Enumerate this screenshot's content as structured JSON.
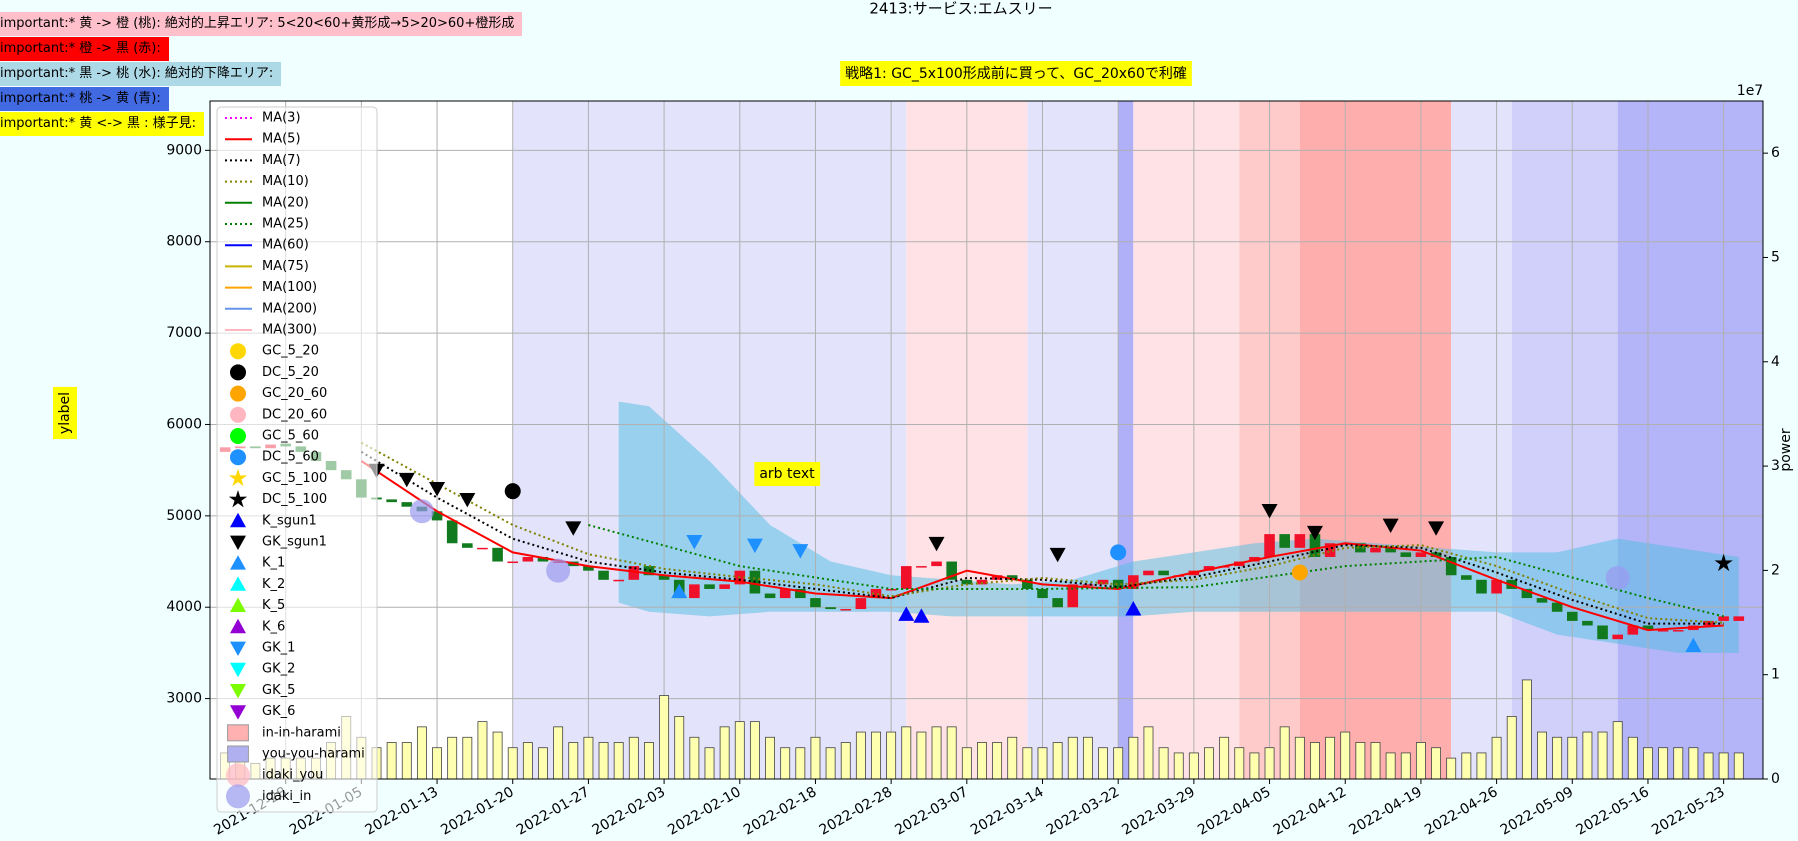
{
  "header": {
    "notes": [
      {
        "text": "important:* 黄 -> 橙 (桃): 絶対的上昇エリア: 5<20<60+黄形成→5>20>60+橙形成",
        "color": "#ffc0cb"
      },
      {
        "text": "important:* 橙 -> 黒 (赤):",
        "color": "#ff0000"
      },
      {
        "text": "important:* 黒 -> 桃 (水): 絶対的下降エリア:",
        "color": "#add8e6"
      },
      {
        "text": "important:* 桃 -> 黄 (青):",
        "color": "#4169e1"
      },
      {
        "text": "important:* 黄 <-> 黒 : 様子見:",
        "color": "#ffff00"
      }
    ]
  },
  "chart_data": {
    "type": "candlestick",
    "title": "2413:サービス:エムスリー",
    "strategy": "戦略1: GC_5x100形成前に買って、GC_20x60で利確",
    "annotation": "arb text",
    "ylabel": "ylabel",
    "y2label": "power",
    "y2_offset": "1e7",
    "grid": true,
    "up_color": "#f0102a",
    "down_color": "#127a1e",
    "volume_color": "#ffffb0",
    "xlim": [
      -1,
      101.6
    ],
    "ylim": [
      2120,
      9540
    ],
    "y2lim": [
      0,
      6.5
    ],
    "yticks": [
      3000,
      4000,
      5000,
      6000,
      7000,
      8000,
      9000
    ],
    "y2ticks": [
      0,
      1,
      2,
      3,
      4,
      5,
      6
    ],
    "xticks": [
      {
        "value": 4,
        "label": "2021-12-28"
      },
      {
        "value": 9,
        "label": "2022-01-05"
      },
      {
        "value": 14,
        "label": "2022-01-13"
      },
      {
        "value": 19,
        "label": "2022-01-20"
      },
      {
        "value": 24,
        "label": "2022-01-27"
      },
      {
        "value": 29,
        "label": "2022-02-03"
      },
      {
        "value": 34,
        "label": "2022-02-10"
      },
      {
        "value": 39,
        "label": "2022-02-18"
      },
      {
        "value": 44,
        "label": "2022-02-28"
      },
      {
        "value": 49,
        "label": "2022-03-07"
      },
      {
        "value": 54,
        "label": "2022-03-14"
      },
      {
        "value": 59,
        "label": "2022-03-22"
      },
      {
        "value": 64,
        "label": "2022-03-29"
      },
      {
        "value": 69,
        "label": "2022-04-05"
      },
      {
        "value": 74,
        "label": "2022-04-12"
      },
      {
        "value": 79,
        "label": "2022-04-19"
      },
      {
        "value": 84,
        "label": "2022-04-26"
      },
      {
        "value": 89,
        "label": "2022-05-09"
      },
      {
        "value": 94,
        "label": "2022-05-16"
      },
      {
        "value": 99,
        "label": "2022-05-23"
      }
    ],
    "spans": [
      {
        "x0": 19,
        "x1": 45,
        "color": "#e3e3fb"
      },
      {
        "x0": 45,
        "x1": 53,
        "color": "#ffe2e6"
      },
      {
        "x0": 53,
        "x1": 59,
        "color": "#e3e3fb"
      },
      {
        "x0": 59,
        "x1": 60,
        "color": "#b0b0f8"
      },
      {
        "x0": 60,
        "x1": 67,
        "color": "#ffe2e6"
      },
      {
        "x0": 67,
        "x1": 71,
        "color": "#ffcaca"
      },
      {
        "x0": 71,
        "x1": 81,
        "color": "#ffaeae"
      },
      {
        "x0": 81,
        "x1": 85,
        "color": "#e3e3fb"
      },
      {
        "x0": 85,
        "x1": 92,
        "color": "#d0d0fa"
      },
      {
        "x0": 92,
        "x1": 101.6,
        "color": "#b4b4f8"
      }
    ],
    "band": {
      "color": "rgba(80,190,225,0.5)",
      "x": [
        26,
        28,
        32,
        36,
        40,
        44,
        48,
        52,
        56,
        60,
        64,
        68,
        72,
        76,
        80,
        84,
        88,
        92,
        96,
        100
      ],
      "upper": [
        6250,
        6200,
        5600,
        4900,
        4500,
        4350,
        4300,
        4250,
        4300,
        4500,
        4600,
        4700,
        4750,
        4700,
        4650,
        4600,
        4600,
        4750,
        4650,
        4550
      ],
      "lower": [
        4050,
        3950,
        3900,
        3950,
        3950,
        3950,
        3900,
        3900,
        3900,
        3900,
        3950,
        3950,
        3950,
        3950,
        3950,
        3950,
        3700,
        3600,
        3500,
        3500
      ]
    },
    "open": [
      5700,
      5740,
      5760,
      5740,
      5790,
      5760,
      5700,
      5600,
      5500,
      5400,
      5200,
      5180,
      5150,
      5100,
      5050,
      4950,
      4700,
      4650,
      4650,
      4500,
      4500,
      4550,
      4500,
      4500,
      4450,
      4400,
      4300,
      4300,
      4450,
      4350,
      4300,
      4100,
      4250,
      4200,
      4250,
      4400,
      4150,
      4100,
      4200,
      4100,
      4000,
      3980,
      3980,
      4100,
      4200,
      4200,
      4450,
      4450,
      4500,
      4300,
      4250,
      4300,
      4350,
      4300,
      4200,
      4100,
      4000,
      4250,
      4250,
      4300,
      4200,
      4350,
      4400,
      4350,
      4350,
      4400,
      4450,
      4450,
      4500,
      4550,
      4800,
      4650,
      4800,
      4550,
      4700,
      4700,
      4600,
      4650,
      4600,
      4550,
      4600,
      4550,
      4350,
      4300,
      4150,
      4300,
      4200,
      4100,
      4050,
      3950,
      3850,
      3800,
      3650,
      3700,
      3800,
      3750,
      3750,
      3750,
      3800,
      3850,
      3850
    ],
    "close": [
      5750,
      5760,
      5740,
      5780,
      5760,
      5700,
      5600,
      5500,
      5400,
      5200,
      5180,
      5150,
      5100,
      5050,
      4950,
      4700,
      4650,
      4650,
      4500,
      4500,
      4550,
      4500,
      4500,
      4450,
      4400,
      4300,
      4300,
      4450,
      4350,
      4300,
      4100,
      4250,
      4200,
      4250,
      4400,
      4150,
      4100,
      4200,
      4100,
      4000,
      3980,
      3980,
      4100,
      4200,
      4200,
      4450,
      4450,
      4500,
      4300,
      4250,
      4300,
      4350,
      4300,
      4200,
      4100,
      4000,
      4250,
      4250,
      4300,
      4200,
      4350,
      4400,
      4350,
      4350,
      4400,
      4450,
      4450,
      4500,
      4550,
      4800,
      4650,
      4800,
      4550,
      4700,
      4700,
      4600,
      4650,
      4600,
      4550,
      4600,
      4550,
      4350,
      4300,
      4150,
      4300,
      4200,
      4100,
      4050,
      3950,
      3850,
      3800,
      3650,
      3700,
      3800,
      3750,
      3750,
      3750,
      3800,
      3850,
      3900,
      3900
    ],
    "volume": [
      0.25,
      0.2,
      0.15,
      0.2,
      0.2,
      0.2,
      0.2,
      0.35,
      0.6,
      0.4,
      0.3,
      0.35,
      0.35,
      0.5,
      0.3,
      0.4,
      0.4,
      0.55,
      0.45,
      0.3,
      0.35,
      0.3,
      0.5,
      0.35,
      0.4,
      0.35,
      0.35,
      0.4,
      0.35,
      0.8,
      0.6,
      0.4,
      0.3,
      0.5,
      0.55,
      0.55,
      0.4,
      0.3,
      0.3,
      0.4,
      0.3,
      0.35,
      0.45,
      0.45,
      0.45,
      0.5,
      0.45,
      0.5,
      0.5,
      0.3,
      0.35,
      0.35,
      0.4,
      0.3,
      0.3,
      0.35,
      0.4,
      0.4,
      0.3,
      0.3,
      0.4,
      0.5,
      0.3,
      0.25,
      0.25,
      0.3,
      0.4,
      0.3,
      0.25,
      0.3,
      0.5,
      0.4,
      0.35,
      0.4,
      0.45,
      0.35,
      0.35,
      0.25,
      0.25,
      0.35,
      0.3,
      0.2,
      0.25,
      0.25,
      0.4,
      0.6,
      0.95,
      0.45,
      0.4,
      0.4,
      0.45,
      0.45,
      0.55,
      0.4,
      0.3,
      0.3,
      0.3,
      0.3,
      0.25,
      0.25,
      0.25
    ],
    "series": [
      {
        "name": "MA(3)",
        "color": "#ff00ff",
        "marker": "line",
        "dash": true,
        "x": [],
        "values": []
      },
      {
        "name": "MA(5)",
        "color": "#ff0000",
        "marker": "line",
        "dash": false,
        "x": [
          9,
          14,
          19,
          24,
          29,
          34,
          39,
          44,
          49,
          54,
          59,
          64,
          69,
          74,
          79,
          84,
          89,
          94,
          99
        ],
        "values": [
          5600,
          5050,
          4600,
          4450,
          4350,
          4280,
          4150,
          4100,
          4400,
          4250,
          4200,
          4380,
          4550,
          4700,
          4620,
          4300,
          4000,
          3750,
          3800
        ]
      },
      {
        "name": "MA(7)",
        "color": "#000000",
        "marker": "line",
        "dash": true,
        "x": [
          9,
          14,
          19,
          24,
          29,
          34,
          39,
          44,
          49,
          54,
          59,
          64,
          69,
          74,
          79,
          84,
          89,
          94,
          99
        ],
        "values": [
          5700,
          5200,
          4750,
          4500,
          4380,
          4300,
          4200,
          4100,
          4320,
          4300,
          4220,
          4330,
          4500,
          4680,
          4650,
          4380,
          4080,
          3820,
          3820
        ]
      },
      {
        "name": "MA(10)",
        "color": "#808000",
        "marker": "line",
        "dash": true,
        "x": [
          9,
          14,
          19,
          24,
          29,
          34,
          39,
          44,
          49,
          54,
          59,
          64,
          69,
          74,
          79,
          84,
          89,
          94,
          99
        ],
        "values": [
          5800,
          5350,
          4900,
          4580,
          4420,
          4330,
          4250,
          4120,
          4250,
          4320,
          4250,
          4300,
          4450,
          4650,
          4680,
          4450,
          4150,
          3880,
          3830
        ]
      },
      {
        "name": "MA(20)",
        "color": "#008000",
        "marker": "line",
        "dash": false,
        "x": [],
        "values": []
      },
      {
        "name": "MA(25)",
        "color": "#008000",
        "marker": "line",
        "dash": true,
        "x": [
          24,
          34,
          44,
          54,
          64,
          74,
          84,
          94,
          99
        ],
        "values": [
          4900,
          4450,
          4200,
          4200,
          4220,
          4450,
          4550,
          4100,
          3900
        ]
      },
      {
        "name": "MA(60)",
        "color": "#0000ff",
        "marker": "line",
        "dash": false,
        "x": [],
        "values": []
      },
      {
        "name": "MA(75)",
        "color": "#c8b400",
        "marker": "line",
        "dash": false,
        "x": [],
        "values": []
      },
      {
        "name": "MA(100)",
        "color": "#ffa500",
        "marker": "line",
        "dash": false,
        "x": [],
        "values": []
      },
      {
        "name": "MA(200)",
        "color": "#6495ed",
        "marker": "line",
        "dash": false,
        "x": [],
        "values": []
      },
      {
        "name": "MA(300)",
        "color": "#ffb6c1",
        "marker": "line",
        "dash": false,
        "x": [],
        "values": []
      },
      {
        "name": "GC_5_20",
        "color": "#ffd700",
        "marker": "circle",
        "x": [],
        "values": []
      },
      {
        "name": "DC_5_20",
        "color": "#000000",
        "marker": "circle",
        "x": [
          19
        ],
        "values": [
          5270
        ]
      },
      {
        "name": "GC_20_60",
        "color": "#ffa500",
        "marker": "circle",
        "x": [
          71
        ],
        "values": [
          4380
        ]
      },
      {
        "name": "DC_20_60",
        "color": "#ffb6c1",
        "marker": "circle",
        "x": [],
        "values": []
      },
      {
        "name": "GC_5_60",
        "color": "#00ff00",
        "marker": "circle",
        "x": [],
        "values": []
      },
      {
        "name": "DC_5_60",
        "color": "#1e90ff",
        "marker": "circle",
        "x": [
          59
        ],
        "values": [
          4600
        ]
      },
      {
        "name": "GC_5_100",
        "color": "#ffd700",
        "marker": "star",
        "x": [],
        "values": []
      },
      {
        "name": "DC_5_100",
        "color": "#000000",
        "marker": "star",
        "x": [
          99
        ],
        "values": [
          4480
        ]
      },
      {
        "name": "K_sgun1",
        "color": "#0000ff",
        "marker": "tri-up",
        "x": [
          45,
          46,
          60
        ],
        "values": [
          3920,
          3900,
          3980
        ]
      },
      {
        "name": "GK_sgun1",
        "color": "#000000",
        "marker": "tri-down",
        "x": [
          10,
          12,
          14,
          16,
          23,
          47,
          55,
          69,
          72,
          77,
          80
        ],
        "values": [
          5500,
          5400,
          5300,
          5180,
          4870,
          4700,
          4580,
          5060,
          4820,
          4900,
          4870
        ]
      },
      {
        "name": "K_1",
        "color": "#1e90ff",
        "marker": "tri-up",
        "x": [
          30,
          97
        ],
        "values": [
          4170,
          3580
        ]
      },
      {
        "name": "K_2",
        "color": "#00ffff",
        "marker": "tri-up",
        "x": [],
        "values": []
      },
      {
        "name": "K_5",
        "color": "#7cfc00",
        "marker": "tri-up",
        "x": [],
        "values": []
      },
      {
        "name": "K_6",
        "color": "#9400d3",
        "marker": "tri-up",
        "x": [],
        "values": []
      },
      {
        "name": "GK_1",
        "color": "#1e90ff",
        "marker": "tri-down",
        "x": [
          31,
          35,
          38
        ],
        "values": [
          4720,
          4680,
          4620
        ]
      },
      {
        "name": "GK_2",
        "color": "#00ffff",
        "marker": "tri-down",
        "x": [],
        "values": []
      },
      {
        "name": "GK_5",
        "color": "#7cfc00",
        "marker": "tri-down",
        "x": [],
        "values": []
      },
      {
        "name": "GK_6",
        "color": "#9400d3",
        "marker": "tri-down",
        "x": [],
        "values": []
      },
      {
        "name": "in-in-harami",
        "color": "#ffb0b0",
        "marker": "square",
        "x": [],
        "values": []
      },
      {
        "name": "you-you-harami",
        "color": "#b0b0f0",
        "marker": "square",
        "x": [],
        "values": []
      },
      {
        "name": "idaki_you",
        "color": "#ffb6c1",
        "marker": "big-circle",
        "x": [],
        "values": []
      },
      {
        "name": "idaki_in",
        "color": "#9a9af0",
        "marker": "big-circle",
        "x": [
          13,
          22,
          92
        ],
        "values": [
          5050,
          4400,
          4320
        ]
      }
    ]
  }
}
